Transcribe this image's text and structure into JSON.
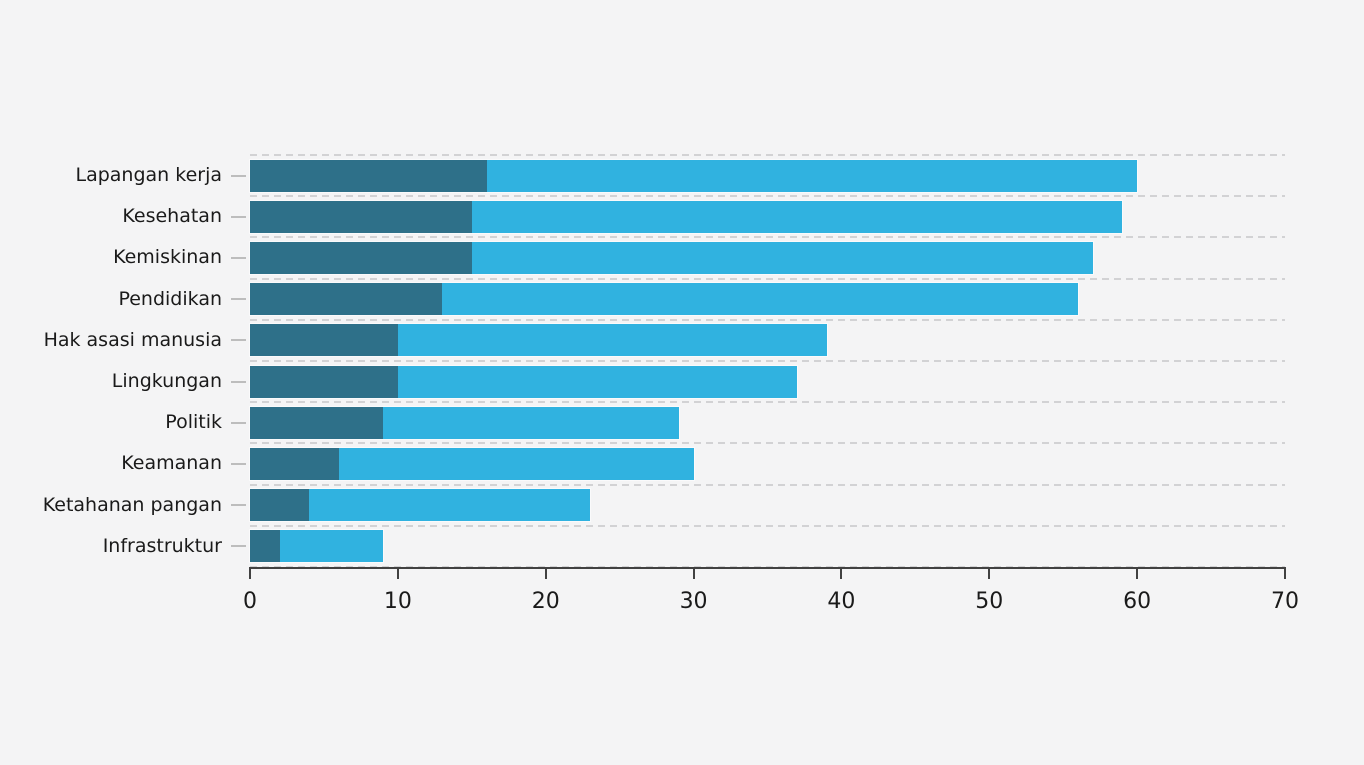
{
  "chart_data": {
    "type": "bar",
    "orientation": "horizontal",
    "stacked": true,
    "title": "",
    "xlabel": "",
    "ylabel": "",
    "legend": "none",
    "grid": "dashed horizontal lines at row boundaries",
    "xlim": [
      0,
      70
    ],
    "x_ticks": [
      0,
      10,
      20,
      30,
      40,
      50,
      60,
      70
    ],
    "categories": [
      "Lapangan kerja",
      "Kesehatan",
      "Kemiskinan",
      "Pendidikan",
      "Hak asasi manusia",
      "Lingkungan",
      "Politik",
      "Keamanan",
      "Ketahanan pangan",
      "Infrastruktur"
    ],
    "series": [
      {
        "name": "dark-teal-segment",
        "color": "#2e7089",
        "values": [
          16,
          15,
          15,
          13,
          10,
          10,
          9,
          6,
          4,
          2
        ]
      },
      {
        "name": "light-blue-segment",
        "color": "#30b2e0",
        "values": [
          44,
          44,
          42,
          43,
          29,
          27,
          20,
          24,
          19,
          7
        ]
      }
    ],
    "stack_totals": [
      60,
      59,
      57,
      56,
      39,
      37,
      29,
      30,
      23,
      9
    ]
  },
  "colors": {
    "background": "#f4f4f5",
    "axis": "#414141",
    "grid_dash": "#d2d2d4",
    "y_tick": "#bdbdbd",
    "text": "#1a1a1a"
  }
}
